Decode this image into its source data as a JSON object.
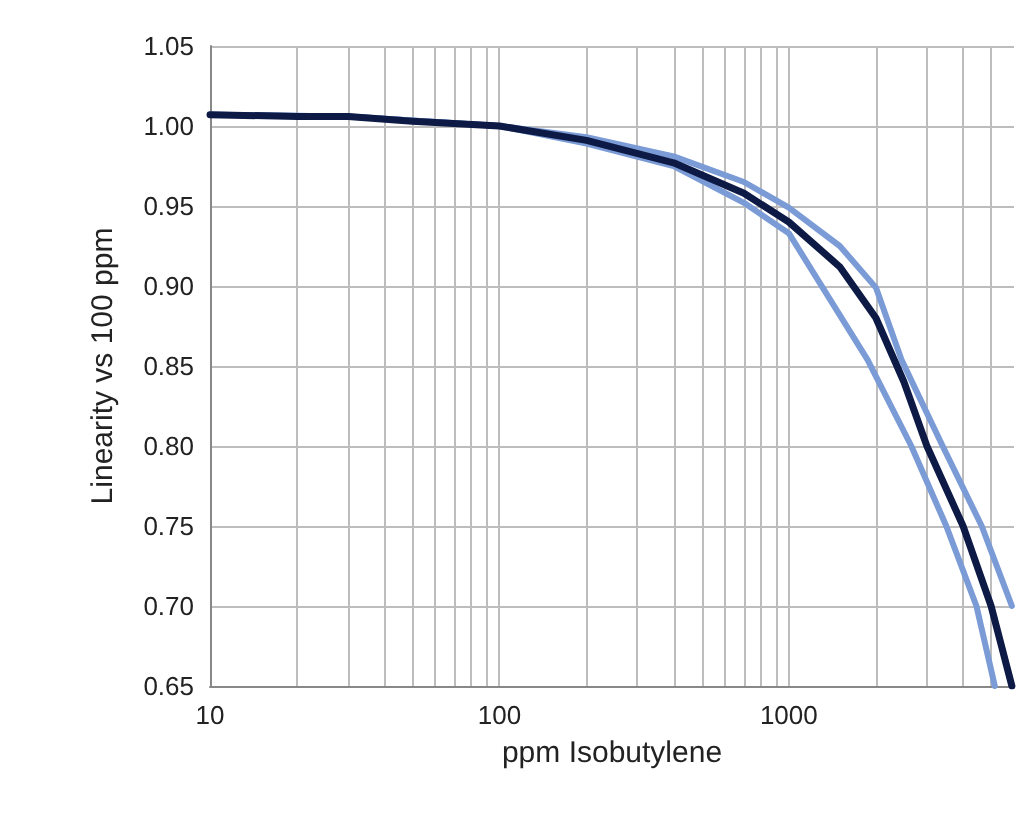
{
  "chart_data": {
    "type": "line",
    "xlabel": "ppm Isobutylene",
    "ylabel": "Linearity vs 100 ppm",
    "log": "x",
    "grid": true,
    "marker": "none",
    "line_style": "solid",
    "xlim": [
      10,
      6000
    ],
    "xticks": [
      10,
      {
        "value": 20,
        "label": null
      },
      {
        "value": 30,
        "label": null
      },
      {
        "value": 40,
        "label": null
      },
      {
        "value": 50,
        "label": null
      },
      {
        "value": 60,
        "label": null
      },
      {
        "value": 70,
        "label": null
      },
      {
        "value": 80,
        "label": null
      },
      {
        "value": 90,
        "label": null
      },
      100,
      {
        "value": 200,
        "label": null
      },
      {
        "value": 300,
        "label": null
      },
      {
        "value": 400,
        "label": null
      },
      {
        "value": 500,
        "label": null
      },
      {
        "value": 600,
        "label": null
      },
      {
        "value": 700,
        "label": null
      },
      {
        "value": 800,
        "label": null
      },
      {
        "value": 900,
        "label": null
      },
      1000,
      {
        "value": 2000,
        "label": null
      },
      {
        "value": 3000,
        "label": null
      },
      {
        "value": 4000,
        "label": null
      },
      {
        "value": 5000,
        "label": null
      }
    ],
    "ylim": [
      0.65,
      1.05
    ],
    "yticks": [
      {
        "value": 0.65,
        "label": "0.65"
      },
      {
        "value": 0.7,
        "label": "0.70"
      },
      {
        "value": 0.75,
        "label": "0.75"
      },
      {
        "value": 0.8,
        "label": "0.80"
      },
      {
        "value": 0.85,
        "label": "0.85"
      },
      {
        "value": 0.9,
        "label": "0.90"
      },
      {
        "value": 0.95,
        "label": "0.95"
      },
      {
        "value": 1.0,
        "label": "1.00"
      },
      {
        "value": 1.05,
        "label": "1.05"
      }
    ],
    "series": [
      {
        "color": "#7b9bd6",
        "x": [
          10,
          30,
          100,
          200,
          400,
          700,
          1000,
          1500,
          2000,
          2450,
          3400,
          4640,
          5900
        ],
        "values": [
          1.007,
          1.006,
          1.0,
          0.993,
          0.981,
          0.965,
          0.949,
          0.925,
          0.899,
          0.854,
          0.8,
          0.75,
          0.7
        ]
      },
      {
        "color": "#7b9bd6",
        "x": [
          10,
          30,
          100,
          200,
          400,
          700,
          1000,
          1870,
          2650,
          3500,
          4450,
          5150
        ],
        "values": [
          1.007,
          1.006,
          1.0,
          0.989,
          0.975,
          0.952,
          0.933,
          0.854,
          0.8,
          0.75,
          0.7,
          0.65
        ]
      },
      {
        "color": "#0d1a45",
        "x": [
          10,
          20,
          30,
          50,
          100,
          200,
          400,
          700,
          1000,
          1500,
          2000,
          2500,
          3000,
          4000,
          5000,
          5900
        ],
        "values": [
          1.007,
          1.006,
          1.006,
          1.003,
          1.0,
          0.991,
          0.977,
          0.958,
          0.94,
          0.912,
          0.88,
          0.84,
          0.8,
          0.75,
          0.7,
          0.65
        ]
      }
    ]
  }
}
